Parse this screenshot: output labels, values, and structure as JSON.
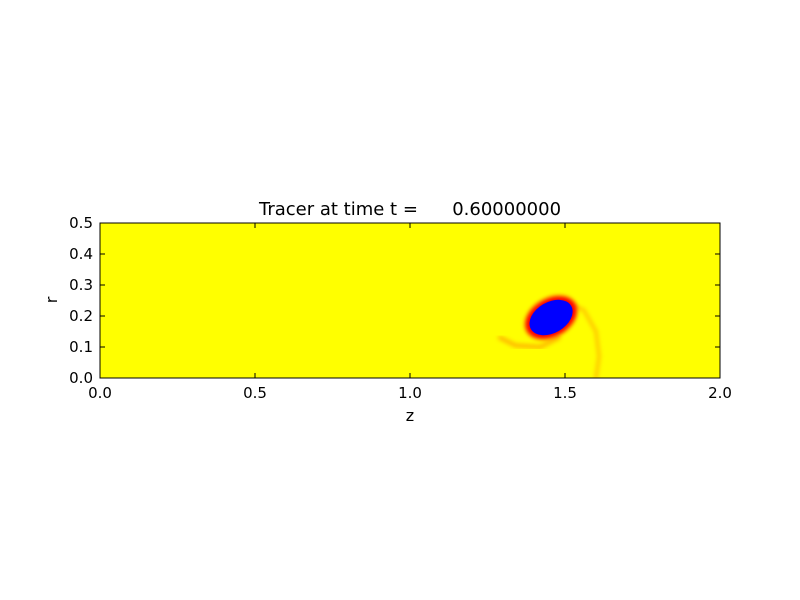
{
  "chart_data": {
    "type": "heatmap",
    "title": "Tracer at time t =      0.60000000",
    "xlabel": "z",
    "ylabel": "r",
    "xlim": [
      0.0,
      2.0
    ],
    "ylim": [
      0.0,
      0.5
    ],
    "xticks": [
      "0.0",
      "0.5",
      "1.0",
      "1.5",
      "2.0"
    ],
    "yticks": [
      "0.0",
      "0.1",
      "0.2",
      "0.3",
      "0.4",
      "0.5"
    ],
    "xtick_values": [
      0.0,
      0.5,
      1.0,
      1.5,
      2.0
    ],
    "ytick_values": [
      0.0,
      0.1,
      0.2,
      0.3,
      0.4,
      0.5
    ],
    "grid": false,
    "colors": {
      "background": "#ffff00",
      "core": "#0000ff",
      "edge": "#ff0000",
      "wisp": "#ffa500"
    },
    "features": {
      "core": {
        "center_z": 1.455,
        "center_r": 0.195,
        "half_width_z": 0.075,
        "half_height_r": 0.05,
        "tilt_deg": -30
      },
      "rim": {
        "center_z": 1.455,
        "center_r": 0.195,
        "half_width_z": 0.09,
        "half_height_r": 0.062,
        "tilt_deg": -30
      },
      "lower_wisp": [
        [
          1.29,
          0.13
        ],
        [
          1.34,
          0.105
        ],
        [
          1.42,
          0.1
        ],
        [
          1.48,
          0.13
        ]
      ],
      "right_filament": [
        [
          1.5,
          0.245
        ],
        [
          1.56,
          0.22
        ],
        [
          1.6,
          0.15
        ],
        [
          1.61,
          0.07
        ],
        [
          1.6,
          0.0
        ]
      ]
    }
  }
}
